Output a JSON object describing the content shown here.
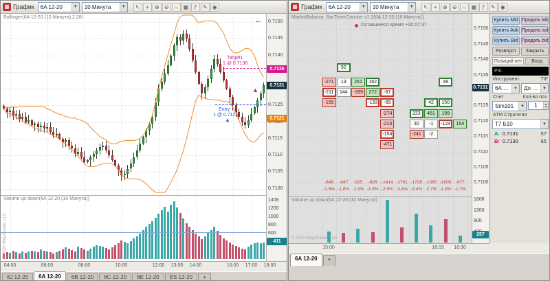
{
  "left_window": {
    "title": "График",
    "instrument": "6A 12-20",
    "interval": "10 Минута",
    "toolbar_icons": [
      "cursor-icon",
      "crosshair-icon",
      "zoom-in-icon",
      "zoom-out-icon",
      "pan-icon",
      "chart-style-icon",
      "indicators-icon",
      "draw-icon",
      "snapshot-icon"
    ],
    "indicator_label": "Bollinger(6A 12-20 (10 Минута),2,28)",
    "volume_label": "Volume up down(6A 12-20 (10 Минута))",
    "copyright": "© 2020 NinjaTrader, LLC",
    "back_arrow": "←",
    "price_axis_labels": [
      "0.7150",
      "0.7145",
      "0.7140",
      "0.7135",
      "0.7130",
      "0.7125",
      "0.7120",
      "0.7115",
      "0.7110",
      "0.7105",
      "0.7100"
    ],
    "price_chips": [
      {
        "label": "0.7136",
        "color": "#D81B8C",
        "ticks": 36
      },
      {
        "label": "0.7131",
        "color": "#16323F",
        "ticks": 31
      },
      {
        "label": "0.7121",
        "color": "#E8820C",
        "ticks": 21
      }
    ],
    "volume_axis_labels": [
      {
        "label": "1408",
        "value": 1408
      },
      {
        "label": "1200",
        "value": 1200
      },
      {
        "label": "1000",
        "value": 1000
      },
      {
        "label": "800",
        "value": 800
      },
      {
        "label": "600",
        "value": 600
      },
      {
        "label": "400",
        "value": 400
      }
    ],
    "volume_chip": {
      "label": "411",
      "value": 411,
      "color": "#17818E"
    },
    "time_labels": [
      {
        "label": "04:00",
        "bar": 2
      },
      {
        "label": "06:00",
        "bar": 14
      },
      {
        "label": "08:00",
        "bar": 26
      },
      {
        "label": "10:00",
        "bar": 38
      },
      {
        "label": "12:00",
        "bar": 50
      },
      {
        "label": "13:00",
        "bar": 56
      },
      {
        "label": "14:00",
        "bar": 62
      },
      {
        "label": "16:00",
        "bar": 74
      },
      {
        "label": "17:00",
        "bar": 80
      },
      {
        "label": "18:00",
        "bar": 86
      }
    ],
    "annotations": {
      "target_title": "Target1",
      "target_qty": "1 @ 0.7136",
      "entry_title": "Entry",
      "entry_qty": "1 @ 0.7125"
    },
    "tabs": [
      "6J 12-20",
      "6A 12-20",
      "6B 12-20",
      "6C 12-20",
      "6E 12-20",
      "ES 12-20"
    ],
    "active_tab_index": 1,
    "add_tab": "+"
  },
  "right_window": {
    "title": "График",
    "instrument": "6A 12-20",
    "interval": "10 Минута",
    "toolbar_icons": [
      "cursor-icon",
      "crosshair-icon",
      "zoom-in-icon",
      "zoom-out-icon",
      "pan-icon",
      "chart-style-icon",
      "indicators-icon",
      "draw-icon",
      "snapshot-icon"
    ],
    "indicator_label": "MarketBalance, BarTimerCounter v1.2(6A 12-20 (10 Минута))",
    "countdown_label": "Оставшееся время +00:07:37",
    "volume_label": "Volume up down(6A 12-20 (10 Минута))",
    "copyright": "© 2020 NinjaTrader, LLC",
    "price_axis_labels": [
      "0.7150",
      "0.7145",
      "0.7140",
      "0.7135",
      "0.7130",
      "0.7125",
      "0.7120",
      "0.7115",
      "0.7110",
      "0.7105",
      "0.7100"
    ],
    "price_chip": {
      "label": "0.7131",
      "color": "#16323F",
      "ticks": 31
    },
    "volume_axis_labels": [
      {
        "label": "1608",
        "value": 1608
      },
      {
        "label": "1200",
        "value": 1200
      },
      {
        "label": "800",
        "value": 800
      },
      {
        "label": "400",
        "value": 400
      }
    ],
    "volume_chip": {
      "label": "257",
      "value": 257,
      "color": "#17818E"
    },
    "time_labels": [
      {
        "label": "15:00",
        "x": 58
      },
      {
        "label": "16:15",
        "x": 217
      },
      {
        "label": "16:30",
        "x": 249
      }
    ],
    "tabs": [
      "6A 12-20"
    ],
    "active_tab_index": 0,
    "add_tab": "+",
    "trader": {
      "buy_market": "Купить Mkt",
      "sell_market": "Продать Mk",
      "buy_ask": "Купить Ask",
      "sell_ask": "Продать ask",
      "buy_bid": "Купить Bid",
      "sell_bid": "Продать bid",
      "reverse": "Разворот",
      "close": "Закрыть",
      "position_status": "Позиций нет",
      "entry": "Вход",
      "pnl": "Pnl.",
      "instrument_label": "Инструмент",
      "tif_label": "TIF",
      "instrument_value": "6A 12-20",
      "tif_value": "До ис...",
      "account_label": "Счет",
      "qty_label": "Кол-во поз.",
      "account_value": "Sim101",
      "qty_value": "1",
      "atm_label": "АТМ Стратегия",
      "atm_value": "Т7 Б10",
      "ask_row": {
        "side": "A:",
        "price": "0.7131",
        "size": "57"
      },
      "bid_row": {
        "side": "B:",
        "price": "0.7130",
        "size": "65"
      },
      "colors": {
        "buy": "#BFD3E6",
        "sell": "#E3C9D4"
      }
    }
  },
  "chart_data": [
    {
      "name": "left-price-chart",
      "type": "candlestick",
      "title": "Bollinger(6A 12-20 (10 Минута),2,28)",
      "instrument": "6A 12-20",
      "interval": "10 Минута",
      "bollinger_stddev": 2,
      "bollinger_period": 28,
      "price_base": 0.71,
      "tick_size": 0.0001,
      "ylim": [
        0.71,
        0.715
      ],
      "closes_ticks": [
        24,
        23,
        23.5,
        22,
        22.5,
        21,
        21.5,
        20,
        20.5,
        19,
        19.5,
        18.5,
        19,
        18,
        18.5,
        17,
        16,
        16.5,
        15,
        14,
        14.5,
        13,
        12,
        10.5,
        11,
        9.5,
        8,
        8.5,
        9.5,
        10.5,
        11.5,
        12.5,
        13,
        11.5,
        10,
        8.5,
        7,
        5.5,
        4,
        4.5,
        6,
        7.5,
        9.5,
        11.5,
        13.5,
        15.5,
        17.5,
        19.5,
        21.5,
        26,
        30,
        32,
        34.5,
        37,
        40,
        43,
        45.5,
        44.5,
        46.5,
        45,
        42,
        38.5,
        35,
        31.5,
        28.5,
        30.5,
        33,
        36,
        39,
        37.5,
        35,
        32.5,
        30,
        27.5,
        25,
        23,
        21.5,
        20,
        19,
        20.5,
        22.5,
        24.5,
        26.5,
        28.5,
        31
      ],
      "last_price": "0.7131",
      "target_price": "0.7136",
      "entry_price": "0.7125"
    },
    {
      "name": "left-volume",
      "type": "bar",
      "title": "Volume up down(6A 12-20 (10 Минута))",
      "ylim": [
        0,
        1408
      ],
      "last": 411,
      "values": [
        130,
        170,
        150,
        200,
        160,
        140,
        190,
        150,
        180,
        210,
        190,
        160,
        230,
        210,
        180,
        160,
        140,
        160,
        200,
        240,
        280,
        250,
        220,
        190,
        310,
        270,
        240,
        200,
        260,
        300,
        340,
        320,
        300,
        270,
        240,
        280,
        330,
        380,
        450,
        420,
        390,
        440,
        500,
        560,
        620,
        700,
        780,
        860,
        930,
        1010,
        1100,
        1190,
        1280,
        1150,
        1320,
        1408,
        1260,
        1130,
        990,
        880,
        790,
        700,
        620,
        550,
        490,
        560,
        630,
        710,
        790,
        690,
        590,
        510,
        450,
        400,
        360,
        320,
        290,
        260,
        240,
        310,
        350,
        380,
        400,
        390,
        411
      ]
    },
    {
      "name": "right-market-balance",
      "type": "heatmap",
      "title": "MarketBalance, BarTimerCounter v1.2(6A 12-20 (10 Минута))",
      "columns": 10,
      "cells": [
        {
          "c": 1,
          "r": 0,
          "v": "92",
          "s": "green-border"
        },
        {
          "c": 0,
          "r": 1,
          "v": "-271",
          "s": "red-fill"
        },
        {
          "c": 1,
          "r": 1,
          "v": "13",
          "s": "neutral"
        },
        {
          "c": 2,
          "r": 1,
          "v": "261",
          "s": "green-fill"
        },
        {
          "c": 3,
          "r": 1,
          "v": "162",
          "s": "green-border"
        },
        {
          "c": 8,
          "r": 1,
          "v": "48",
          "s": "green-border"
        },
        {
          "c": 0,
          "r": 2,
          "v": "-211",
          "s": "red-border"
        },
        {
          "c": 1,
          "r": 2,
          "v": "144",
          "s": "neutral"
        },
        {
          "c": 2,
          "r": 2,
          "v": "-339",
          "s": "red-fill"
        },
        {
          "c": 3,
          "r": 2,
          "v": "272",
          "s": "green-fill"
        },
        {
          "c": 4,
          "r": 2,
          "v": "-67",
          "s": "red-border"
        },
        {
          "c": 0,
          "r": 3,
          "v": "-155",
          "s": "red-fill"
        },
        {
          "c": 3,
          "r": 3,
          "v": "-133",
          "s": "red-border"
        },
        {
          "c": 4,
          "r": 3,
          "v": "-69",
          "s": "red-border"
        },
        {
          "c": 7,
          "r": 3,
          "v": "42",
          "s": "green-border"
        },
        {
          "c": 8,
          "r": 3,
          "v": "150",
          "s": "green-border"
        },
        {
          "c": 4,
          "r": 4,
          "v": "-274",
          "s": "red-fill"
        },
        {
          "c": 6,
          "r": 4,
          "v": "223",
          "s": "green-border"
        },
        {
          "c": 7,
          "r": 4,
          "v": "451",
          "s": "green-fill"
        },
        {
          "c": 8,
          "r": 4,
          "v": "199",
          "s": "green-fill"
        },
        {
          "c": 4,
          "r": 5,
          "v": "-215",
          "s": "red-fill"
        },
        {
          "c": 6,
          "r": 5,
          "v": "30",
          "s": "neutral"
        },
        {
          "c": 7,
          "r": 5,
          "v": "-1",
          "s": "neutral"
        },
        {
          "c": 8,
          "r": 5,
          "v": "-124",
          "s": "red-border"
        },
        {
          "c": 9,
          "r": 5,
          "v": "154",
          "s": "green-fill"
        },
        {
          "c": 4,
          "r": 6,
          "v": "-154",
          "s": "red-border"
        },
        {
          "c": 6,
          "r": 6,
          "v": "-241",
          "s": "red-fill"
        },
        {
          "c": 7,
          "r": 6,
          "v": "-2",
          "s": "neutral"
        },
        {
          "c": 4,
          "r": 7,
          "v": "-471",
          "s": "red-fill"
        }
      ],
      "totals": [
        "-849",
        "-847",
        "-925",
        "-926",
        "-1414",
        "-1701",
        "-1728",
        "-1395",
        "-1000",
        "-677"
      ],
      "percents": [
        "-1.8%",
        "-1.8%",
        "-1.9%",
        "-1.9%",
        "-2.9%",
        "-3.4%",
        "-3.4%",
        "-2.7%",
        "-1.9%",
        "-1.7%"
      ]
    },
    {
      "name": "right-volume",
      "type": "bar",
      "title": "Volume up down(6A 12-20 (10 Минута))",
      "ylim": [
        0,
        1608
      ],
      "last": 257,
      "values": [
        420,
        360,
        520,
        400,
        1608,
        580,
        1100,
        640,
        880,
        257
      ],
      "up": [
        true,
        false,
        true,
        false,
        true,
        false,
        true,
        true,
        false,
        true
      ]
    }
  ]
}
